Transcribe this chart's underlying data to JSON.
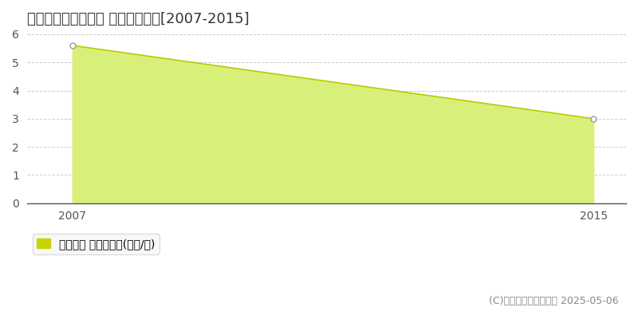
{
  "title": "中新川郡立山町江崎 土地価格推移[2007-2015]",
  "years": [
    2007,
    2015
  ],
  "values": [
    5.6,
    3.0
  ],
  "ylim": [
    0,
    6
  ],
  "yticks": [
    0,
    1,
    2,
    3,
    4,
    5,
    6
  ],
  "xticks": [
    2007,
    2015
  ],
  "line_color": "#b8cc00",
  "fill_color": "#d8f07a",
  "marker_color": "#ffffff",
  "marker_edge_color": "#999999",
  "grid_color": "#cccccc",
  "bg_color": "#ffffff",
  "legend_label": "土地価格 平均坪単価(万円/坪)",
  "legend_color": "#c8d400",
  "copyright_text": "(C)土地価格ドットコム 2025-05-06",
  "title_fontsize": 13,
  "axis_fontsize": 10,
  "legend_fontsize": 10,
  "copyright_fontsize": 9
}
